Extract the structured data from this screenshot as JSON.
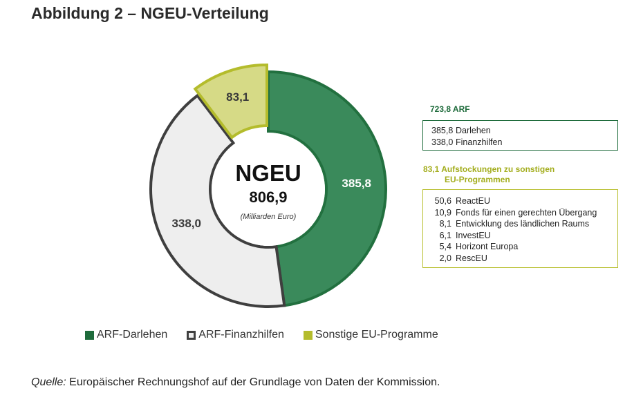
{
  "title": "Abbildung 2 – NGEU-Verteilung",
  "colors": {
    "arf_darlehen": "#3a8a5b",
    "arf_darlehen_border": "#22703f",
    "arf_finanzhilfen": "#eeeeee",
    "arf_finanzhilfen_border": "#3f3f3f",
    "sonstige": "#d6da86",
    "sonstige_border": "#b4bc2c",
    "arf_heading": "#1e6b3b",
    "sonstige_heading": "#a3ad1d"
  },
  "chart_data": {
    "type": "pie",
    "center": {
      "label": "NGEU",
      "total": "806,9",
      "unit": "(Milliarden Euro)"
    },
    "slices": [
      {
        "name": "ARF-Darlehen",
        "value": 385.8,
        "label": "385,8",
        "color": "#3a8a5b",
        "border": "#22703f"
      },
      {
        "name": "ARF-Finanzhilfen",
        "value": 338.0,
        "label": "338,0",
        "color": "#eeeeee",
        "border": "#3f3f3f"
      },
      {
        "name": "Sonstige EU-Programme",
        "value": 83.1,
        "label": "83,1",
        "color": "#d6da86",
        "border": "#b4bc2c"
      }
    ],
    "legend_placement": "bottom"
  },
  "arf_panel": {
    "heading": "723,8 ARF",
    "items": [
      {
        "value": "385,8",
        "label": "Darlehen"
      },
      {
        "value": "338,0",
        "label": "Finanzhilfen"
      }
    ]
  },
  "sonstige_panel": {
    "heading_line1": "83,1 Aufstockungen zu sonstigen",
    "heading_line2": "EU-Programmen",
    "items": [
      {
        "value": "50,6",
        "label": "ReactEU"
      },
      {
        "value": "10,9",
        "label": "Fonds für einen gerechten Übergang"
      },
      {
        "value": "8,1",
        "label": "Entwicklung des ländlichen Raums"
      },
      {
        "value": "6,1",
        "label": "InvestEU"
      },
      {
        "value": "5,4",
        "label": "Horizont Europa"
      },
      {
        "value": "2,0",
        "label": "RescEU"
      }
    ]
  },
  "legend": [
    "ARF-Darlehen",
    "ARF-Finanzhilfen",
    "Sonstige EU-Programme"
  ],
  "source": {
    "prefix": "Quelle:",
    "text": " Europäischer Rechnungshof auf der Grundlage von Daten der Kommission."
  }
}
